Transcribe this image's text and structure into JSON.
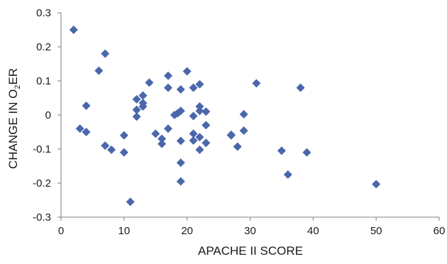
{
  "chart_data": {
    "type": "scatter",
    "title": "",
    "xlabel": "APACHE II SCORE",
    "ylabel": {
      "main": "CHANGE IN O",
      "sub": "2",
      "tail": "ER"
    },
    "xlim": [
      0,
      60
    ],
    "ylim": [
      -0.3,
      0.3
    ],
    "xticks": [
      0,
      10,
      20,
      30,
      40,
      50,
      60
    ],
    "yticks": [
      -0.3,
      -0.2,
      -0.1,
      0,
      0.1,
      0.2,
      0.3
    ],
    "xtick_labels": [
      "0",
      "10",
      "20",
      "30",
      "40",
      "50",
      "60"
    ],
    "ytick_labels": [
      "-0.3",
      "-0.2",
      "-0.1",
      "0",
      "0.1",
      "0.2",
      "0.3"
    ],
    "grid": false,
    "marker": "diamond",
    "colors": {
      "marker": "#4a67ac",
      "axis": "#7f7f7f"
    },
    "series": [
      {
        "points": [
          [
            2,
            0.25
          ],
          [
            3,
            -0.04
          ],
          [
            4,
            0.027
          ],
          [
            4,
            -0.05
          ],
          [
            6,
            0.13
          ],
          [
            7,
            0.18
          ],
          [
            7,
            -0.09
          ],
          [
            8,
            -0.102
          ],
          [
            10,
            -0.06
          ],
          [
            10,
            -0.11
          ],
          [
            11,
            -0.255
          ],
          [
            12,
            0.046
          ],
          [
            12,
            0.015
          ],
          [
            12,
            -0.005
          ],
          [
            13,
            0.057
          ],
          [
            13,
            0.035
          ],
          [
            13,
            0.025
          ],
          [
            14,
            0.095
          ],
          [
            15,
            -0.055
          ],
          [
            16,
            -0.07
          ],
          [
            16,
            -0.085
          ],
          [
            17,
            0.115
          ],
          [
            17,
            0.08
          ],
          [
            17,
            -0.04
          ],
          [
            18,
            0.0
          ],
          [
            18.5,
            0.005
          ],
          [
            19,
            0.075
          ],
          [
            19,
            0.012
          ],
          [
            19,
            -0.076
          ],
          [
            19,
            -0.14
          ],
          [
            19,
            -0.195
          ],
          [
            20,
            0.128
          ],
          [
            21,
            0.08
          ],
          [
            21,
            -0.003
          ],
          [
            21,
            -0.055
          ],
          [
            21,
            -0.075
          ],
          [
            22,
            0.09
          ],
          [
            22,
            0.025
          ],
          [
            22,
            0.012
          ],
          [
            22,
            -0.065
          ],
          [
            22,
            -0.102
          ],
          [
            23,
            0.01
          ],
          [
            23,
            -0.03
          ],
          [
            23,
            -0.082
          ],
          [
            27,
            -0.058
          ],
          [
            27,
            -0.06
          ],
          [
            28,
            -0.093
          ],
          [
            29,
            0.002
          ],
          [
            29,
            -0.046
          ],
          [
            31,
            0.093
          ],
          [
            35,
            -0.105
          ],
          [
            36,
            -0.175
          ],
          [
            38,
            0.08
          ],
          [
            39,
            -0.11
          ],
          [
            50,
            -0.203
          ]
        ]
      }
    ]
  }
}
